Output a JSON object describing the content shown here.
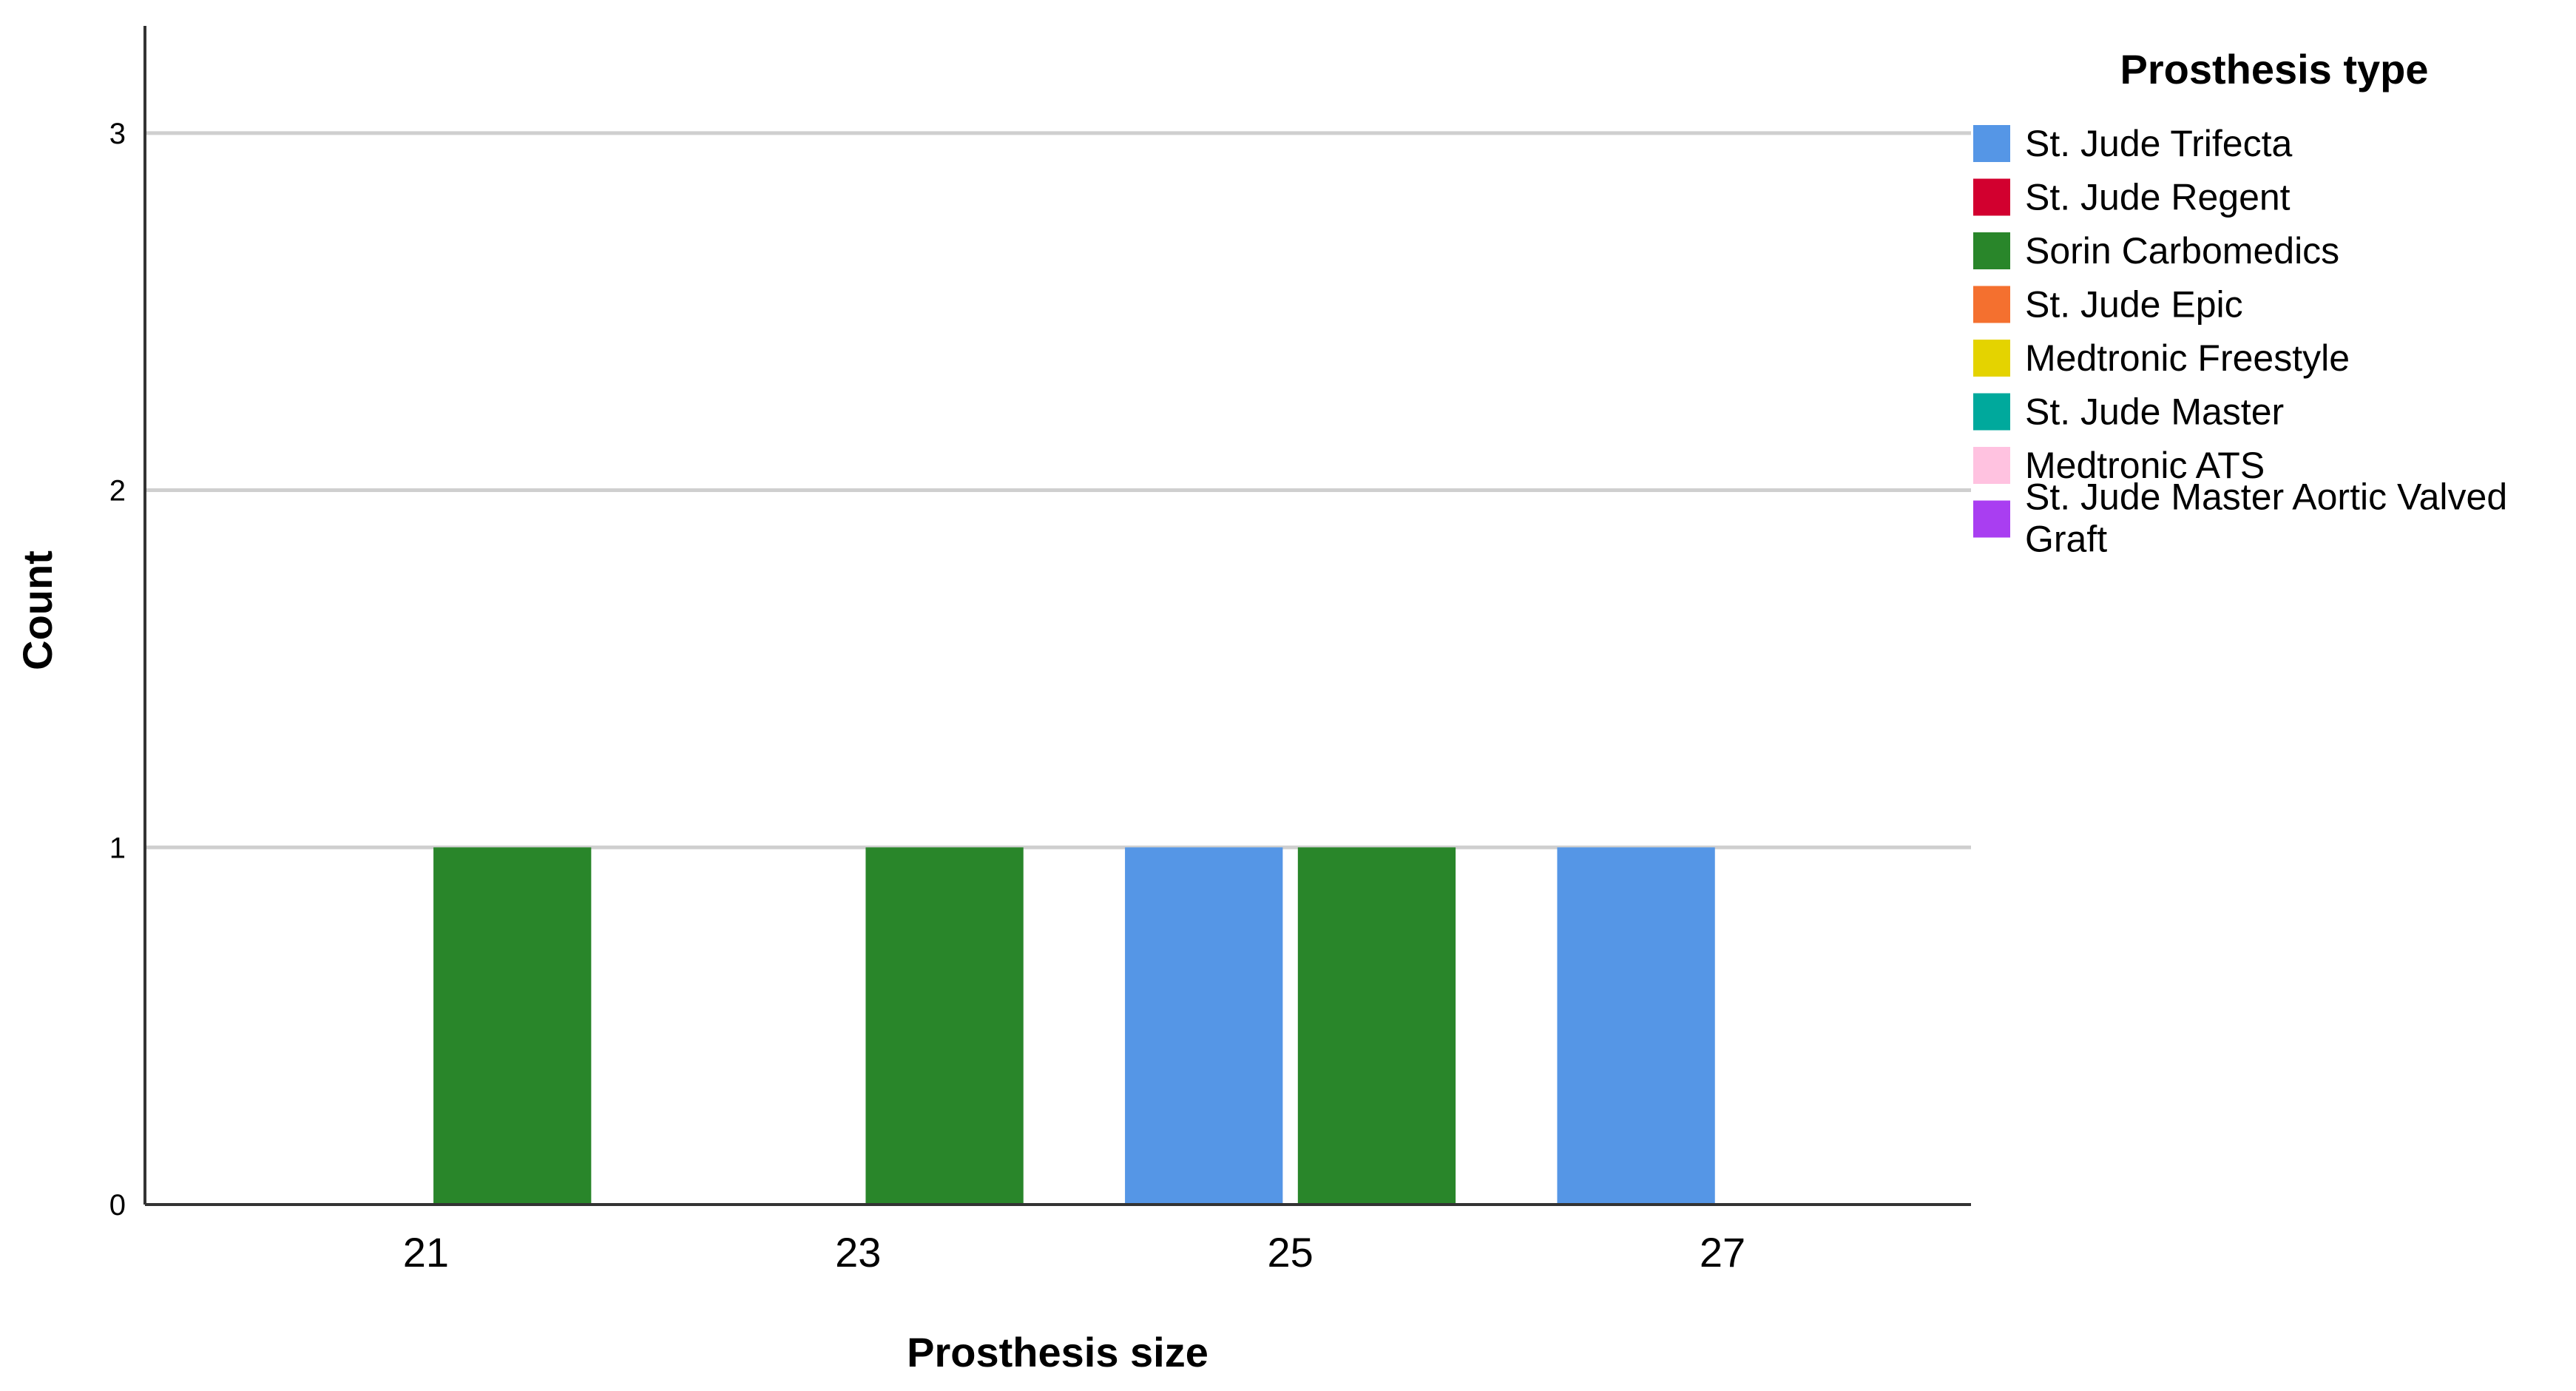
{
  "chart_data": {
    "type": "bar",
    "xlabel": "Prosthesis size",
    "ylabel": "Count",
    "ylim": [
      0,
      3.3
    ],
    "yticks": [
      0,
      1,
      2,
      3
    ],
    "xticks": [
      "21",
      "23",
      "25",
      "27"
    ],
    "x_range": [
      19.7,
      28.15
    ],
    "bar_width": 0.73,
    "grid": true,
    "legend_position": "right",
    "legend_title": "Prosthesis type",
    "series": [
      {
        "name": "St. Jude Trifecta",
        "color": "#5596e6"
      },
      {
        "name": "St. Jude Regent",
        "color": "#d2002f"
      },
      {
        "name": "Sorin Carbomedics",
        "color": "#29862a"
      },
      {
        "name": "St. Jude Epic",
        "color": "#f4702f"
      },
      {
        "name": "Medtronic Freestyle",
        "color": "#e4d300"
      },
      {
        "name": "St. Jude Master",
        "color": "#00a99c"
      },
      {
        "name": "Medtronic ATS",
        "color": "#ffc2e0"
      },
      {
        "name": "St. Jude Master Aortic Valved Graft",
        "color": "#a93ef1"
      }
    ],
    "bars": [
      {
        "series": "Sorin Carbomedics",
        "x": 21.4,
        "value": 1
      },
      {
        "series": "Sorin Carbomedics",
        "x": 23.4,
        "value": 1
      },
      {
        "series": "St. Jude Trifecta",
        "x": 24.6,
        "value": 1
      },
      {
        "series": "Sorin Carbomedics",
        "x": 25.4,
        "value": 1
      },
      {
        "series": "St. Jude Trifecta",
        "x": 26.6,
        "value": 1
      }
    ]
  }
}
